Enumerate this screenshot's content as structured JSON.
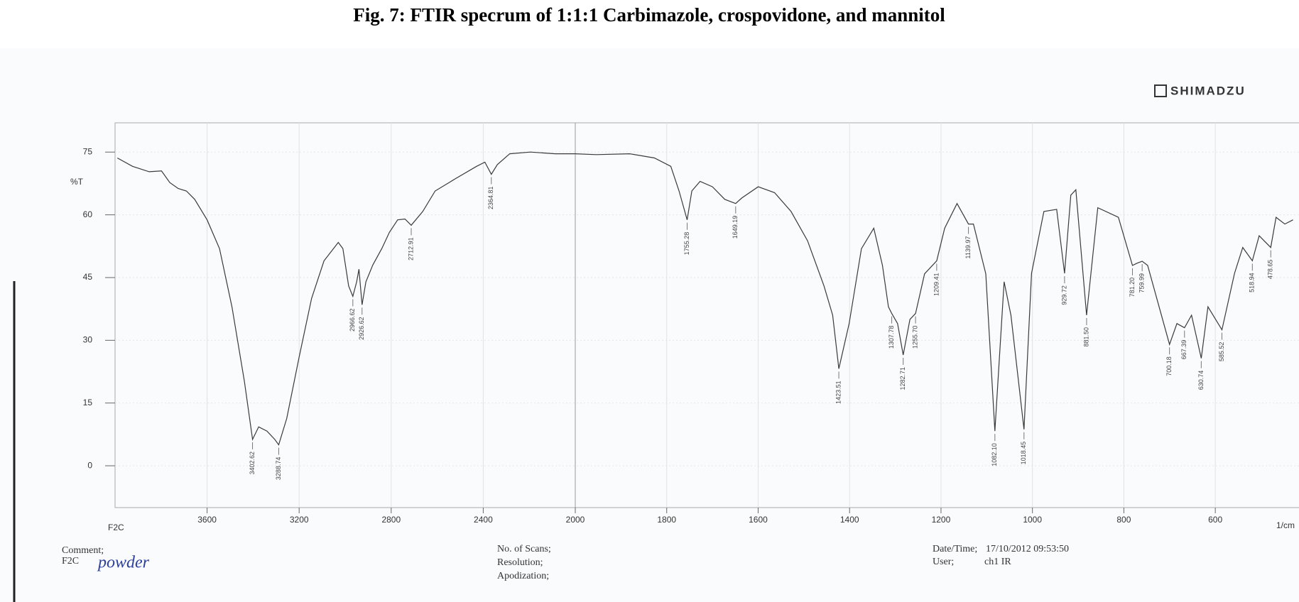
{
  "title": "Fig. 7: FTIR specrum of 1:1:1 Carbimazole, crospovidone, and mannitol",
  "brand": "SHIMADZU",
  "footer": {
    "comment_label": "Comment;",
    "sample": "F2C",
    "note": "powder",
    "scans_label": "No. of Scans;",
    "resolution_label": "Resolution;",
    "apodization_label": "Apodization;",
    "datetime_label": "Date/Time;",
    "datetime": "17/10/2012 09:53:50",
    "user_label": "User;",
    "user": "ch1 IR"
  },
  "chart_data": [
    {
      "type": "line",
      "ylabel": "%T",
      "xlabel": "F2C",
      "color": "#3a3a3a",
      "grid": true,
      "xlim": [
        4000,
        2000
      ],
      "ylim": [
        -10,
        82
      ],
      "xticks": [
        3600,
        3200,
        2800,
        2400,
        2000
      ],
      "yticks": [
        0,
        15,
        30,
        45,
        60,
        75
      ],
      "x": [
        3990,
        3924,
        3852,
        3798,
        3762,
        3726,
        3690,
        3654,
        3600,
        3546,
        3492,
        3438,
        3402.62,
        3376,
        3340,
        3306,
        3288.74,
        3254,
        3200,
        3146,
        3092,
        3030,
        3010,
        2985,
        2966.62,
        2950,
        2940,
        2926.62,
        2910,
        2880,
        2840,
        2808,
        2772,
        2740,
        2712.91,
        2663,
        2609,
        2519,
        2429,
        2393,
        2364.81,
        2339,
        2285,
        2195,
        2087,
        2000
      ],
      "values": [
        73.6,
        71.6,
        70.3,
        70.5,
        67.7,
        66.3,
        65.7,
        63.7,
        58.8,
        51.9,
        38,
        20.2,
        6.3,
        9.3,
        8.3,
        6.3,
        5,
        11.3,
        26,
        40,
        49,
        53.4,
        51.9,
        43,
        40.5,
        44,
        47,
        38.5,
        44,
        48,
        52,
        55.8,
        58.8,
        59,
        57.5,
        60.8,
        65.7,
        68.7,
        71.6,
        72.6,
        69.7,
        72,
        74.6,
        75,
        74.6,
        74.6
      ],
      "peak_x": [
        3402.62,
        3288.74,
        2966.62,
        2926.62,
        2712.91,
        2364.81
      ],
      "peak_y": [
        6.3,
        5,
        40.5,
        38.5,
        57.5,
        69.7
      ]
    },
    {
      "type": "line",
      "xlabel": "1/cm",
      "color": "#3a3a3a",
      "grid": true,
      "xlim": [
        2000,
        420
      ],
      "ylim": [
        -10,
        82
      ],
      "xticks": [
        1800,
        1600,
        1400,
        1200,
        1000,
        800,
        600
      ],
      "x": [
        2000,
        1954,
        1881,
        1827,
        1791,
        1773,
        1755.28,
        1745,
        1727,
        1700,
        1673,
        1649.19,
        1636,
        1600,
        1564,
        1528,
        1492,
        1456,
        1437,
        1423.51,
        1401,
        1374,
        1347,
        1328,
        1315,
        1307.78,
        1295,
        1282.71,
        1268,
        1255.7,
        1236,
        1209.41,
        1192,
        1165,
        1139.97,
        1129,
        1102,
        1082.1,
        1062,
        1047,
        1018.45,
        1002,
        975,
        947,
        929.72,
        916,
        905,
        881.5,
        857,
        812,
        781.2,
        770,
        759.99,
        748,
        700.18,
        684,
        667.39,
        652,
        630.74,
        616,
        585.52,
        558,
        540,
        518.94,
        504,
        478.65,
        467,
        448,
        430
      ],
      "values": [
        74.6,
        74.4,
        74.6,
        73.6,
        71.6,
        65.7,
        58.8,
        65.7,
        68,
        66.7,
        63.7,
        62.7,
        64,
        66.7,
        65.3,
        60.8,
        53.8,
        43,
        36,
        23.2,
        34,
        51.9,
        56.8,
        47.9,
        38,
        36.4,
        34,
        26.5,
        35,
        36.4,
        45.9,
        49,
        56.8,
        62.7,
        57.8,
        57.8,
        45.9,
        8.3,
        44,
        36,
        8.7,
        46,
        60.8,
        61.3,
        46,
        64.7,
        66,
        36,
        61.7,
        59.4,
        47.9,
        48.5,
        48.9,
        47.9,
        29,
        34,
        33,
        36,
        25.7,
        38,
        32.5,
        46,
        52.2,
        49,
        55,
        52.2,
        59.4,
        57.8,
        58.8
      ],
      "peak_x": [
        1755.28,
        1649.19,
        1423.51,
        1307.78,
        1282.71,
        {
          "value": 1255.7,
          "label": "1255.70"
        },
        1209.41,
        1139.97,
        {
          "value": 1082.1,
          "label": "1082.10"
        },
        1018.45,
        929.72,
        {
          "value": 881.5,
          "label": "881.50"
        },
        {
          "value": 781.2,
          "label": "781.20"
        },
        759.99,
        700.18,
        667.39,
        630.74,
        585.52,
        518.94,
        478.65
      ],
      "peak_y": [
        58.8,
        62.7,
        23.2,
        36.4,
        26.5,
        36.4,
        49,
        57.8,
        8.3,
        8.7,
        46,
        36,
        47.9,
        48.9,
        29,
        33,
        25.7,
        32.5,
        49,
        52.2
      ]
    }
  ]
}
